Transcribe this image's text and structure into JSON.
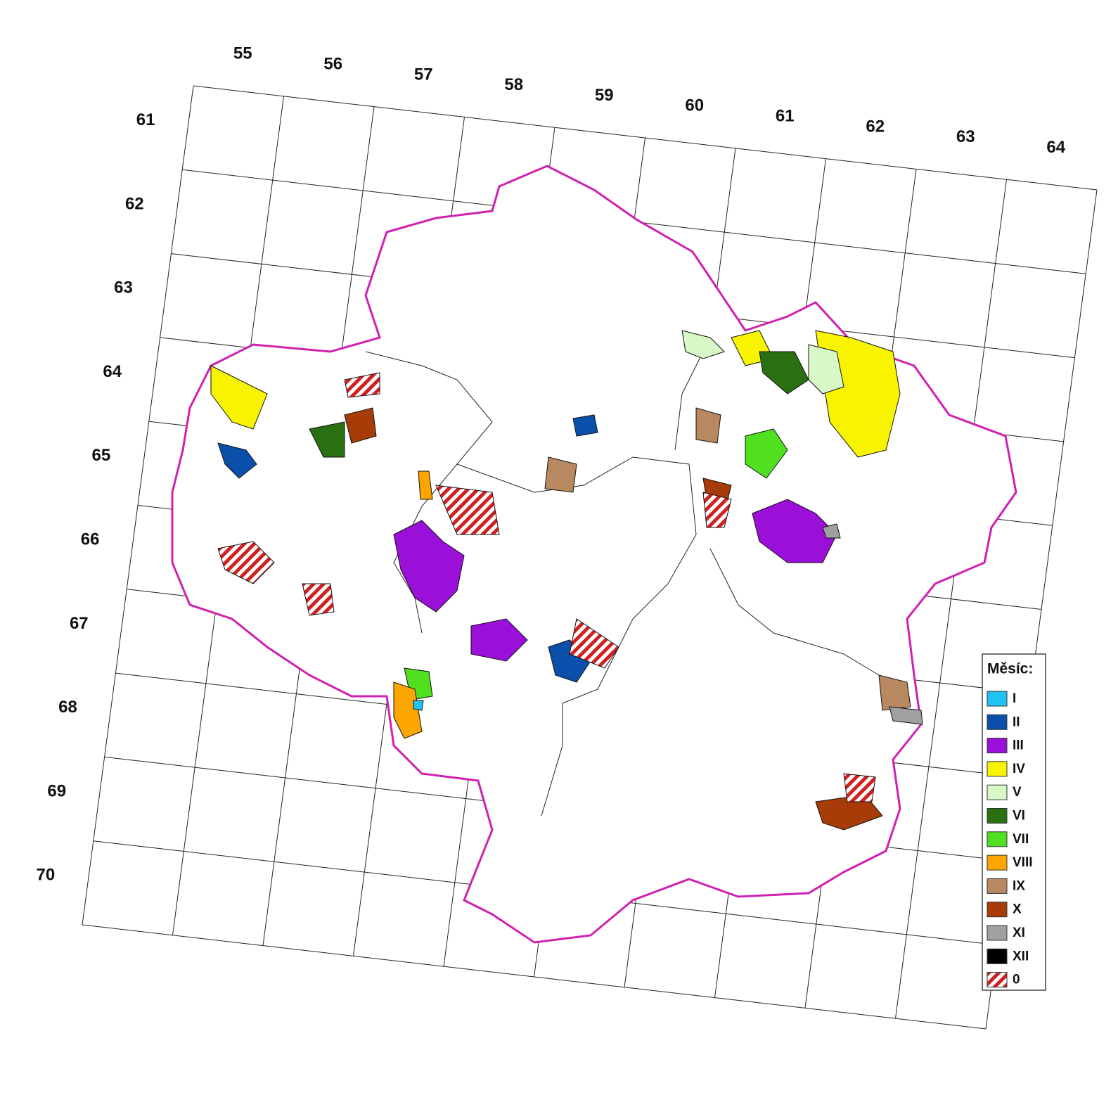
{
  "grid": {
    "columns": [
      "55",
      "56",
      "57",
      "58",
      "59",
      "60",
      "61",
      "62",
      "63",
      "64"
    ],
    "rows": [
      "61",
      "62",
      "63",
      "64",
      "65",
      "66",
      "67",
      "68",
      "69",
      "70"
    ]
  },
  "legend": {
    "title": "Měsíc:",
    "items": [
      {
        "label": "I",
        "color": "#1ec3f2"
      },
      {
        "label": "II",
        "color": "#0a50aa"
      },
      {
        "label": "III",
        "color": "#9b10d8"
      },
      {
        "label": "IV",
        "color": "#f8f400"
      },
      {
        "label": "V",
        "color": "#d8f8c8"
      },
      {
        "label": "VI",
        "color": "#2a7010"
      },
      {
        "label": "VII",
        "color": "#50e020"
      },
      {
        "label": "VIII",
        "color": "#ffa500"
      },
      {
        "label": "IX",
        "color": "#b88860"
      },
      {
        "label": "X",
        "color": "#a83c08"
      },
      {
        "label": "XI",
        "color": "#a0a0a0"
      },
      {
        "label": "XII",
        "color": "#000000"
      },
      {
        "label": "0",
        "color": "#d02020",
        "hatch": true
      }
    ]
  }
}
